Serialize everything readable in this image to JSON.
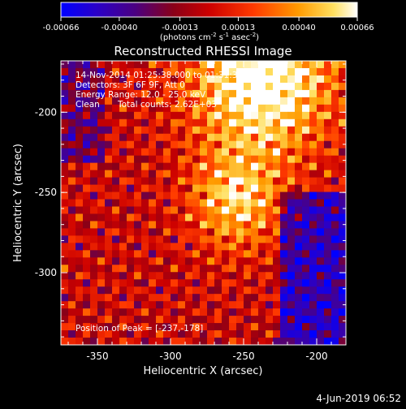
{
  "chart_data": {
    "type": "heatmap",
    "title": "Reconstructed RHESSI Image",
    "xlabel": "Heliocentric X (arcsec)",
    "ylabel": "Heliocentric Y (arcsec)",
    "x_ticks": [
      "-350",
      "-300",
      "-250",
      "-200"
    ],
    "x_tick_values": [
      -350,
      -300,
      -250,
      -200
    ],
    "y_ticks": [
      "-200",
      "-250",
      "-300"
    ],
    "y_tick_values": [
      -200,
      -250,
      -300
    ],
    "xlim": [
      -375,
      -180
    ],
    "ylim": [
      -345,
      -168
    ],
    "colorbar": {
      "ticks": [
        "-0.00066",
        "-0.00040",
        "-0.00013",
        "0.00013",
        "0.00040",
        "0.00066"
      ],
      "tick_values": [
        -0.00066,
        -0.0004,
        -0.00013,
        0.00013,
        0.0004,
        0.00066
      ],
      "range": [
        -0.00066,
        0.00066
      ],
      "units_prefix": "(photons cm",
      "units_exp1": "-2",
      "units_mid1": " s",
      "units_exp2": "-1",
      "units_mid2": " asec",
      "units_exp3": "-2",
      "units_suffix": ")"
    },
    "annotations": {
      "time_range": "14-Nov-2014 01:25:38.000 to 01:31:38.000",
      "detectors": "Detectors: 3F 6F 9F, Att 0",
      "energy": "Energy Range: 12.0 - 25.0 keV",
      "method": "Clean",
      "counts": "Total counts: 2.62E+03",
      "peak": "Position of Peak = [-237,-178]"
    },
    "peak_position": [
      -237,
      -178
    ],
    "footer_date": "4-Jun-2019 06:52"
  }
}
